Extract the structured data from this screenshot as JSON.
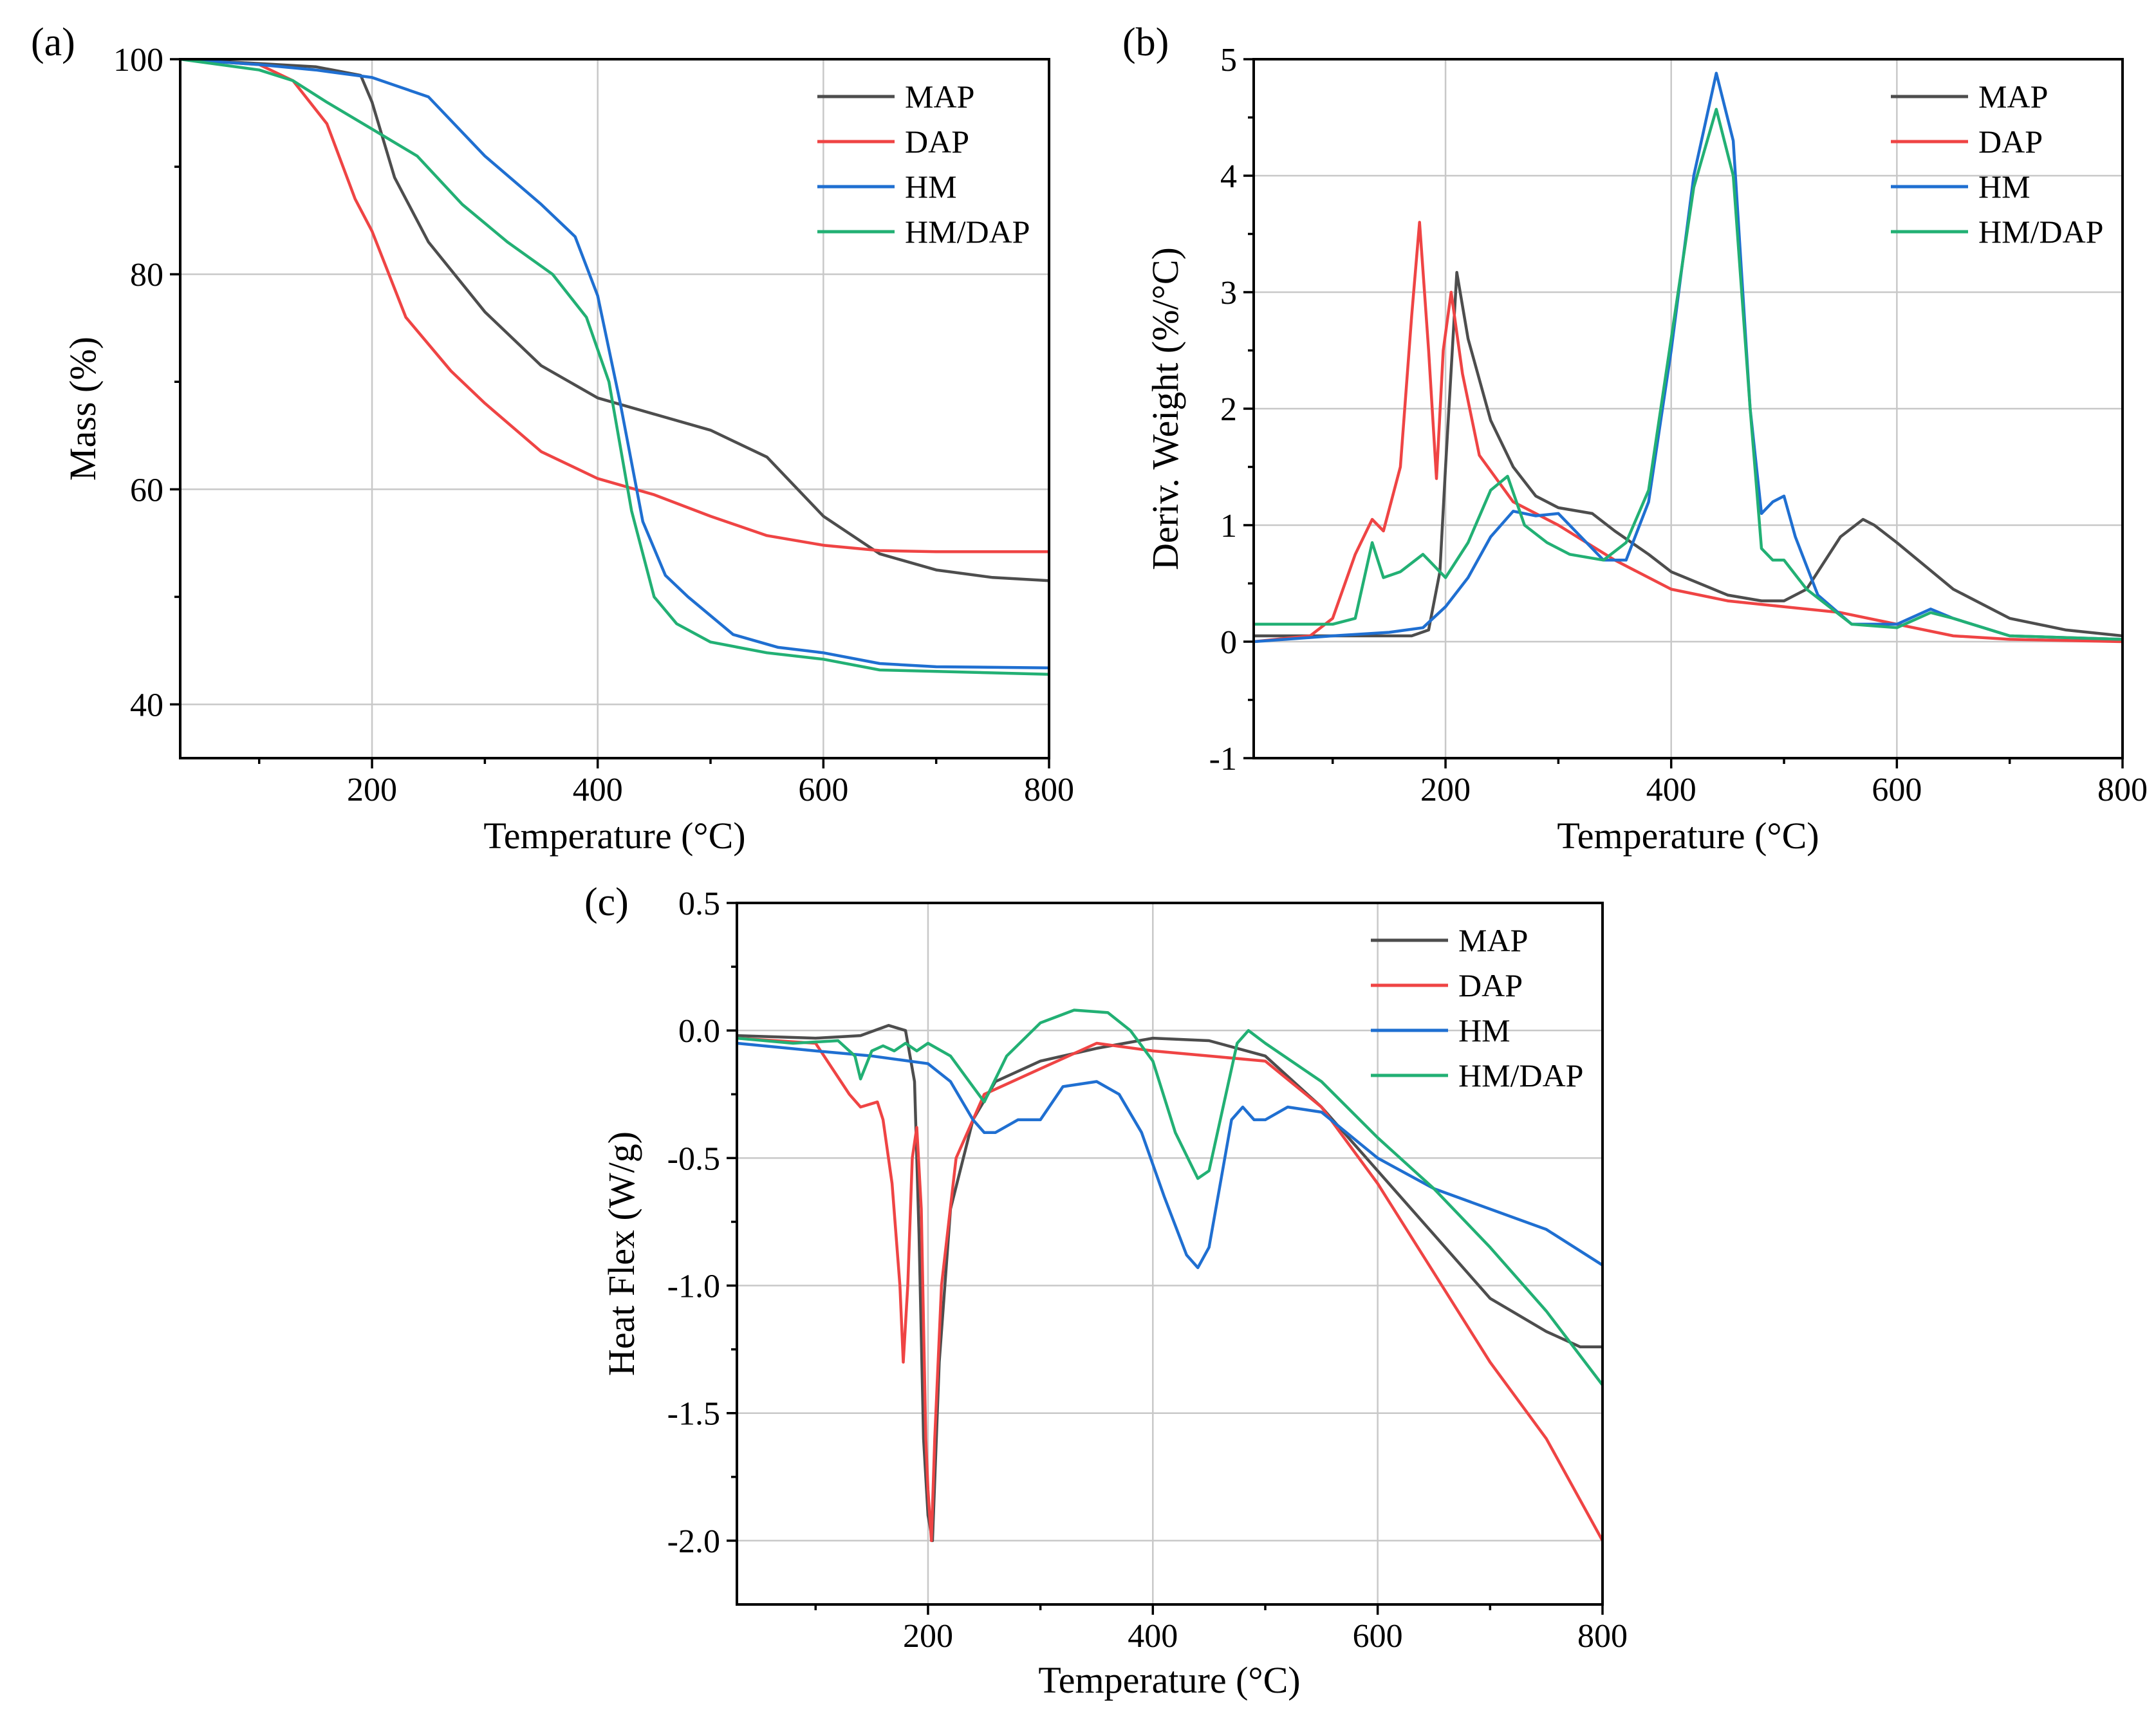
{
  "colors": {
    "MAP": "#4d4d4d",
    "DAP": "#ef4444",
    "HM": "#1f6fd1",
    "HM/DAP": "#22b074"
  },
  "chart_data": [
    {
      "id": "a",
      "type": "line",
      "panel_label": "(a)",
      "xlabel": "Temperature (°C)",
      "ylabel": "Mass (%)",
      "xlim": [
        30,
        800
      ],
      "ylim": [
        35,
        100
      ],
      "xticks": [
        200,
        400,
        600,
        800
      ],
      "yticks": [
        40,
        60,
        80,
        100
      ],
      "grid": true,
      "legend_position": "top-right",
      "series": [
        {
          "name": "MAP",
          "x": [
            30,
            100,
            150,
            190,
            200,
            220,
            250,
            300,
            350,
            400,
            450,
            500,
            550,
            600,
            650,
            700,
            750,
            800
          ],
          "y": [
            100,
            99.6,
            99.3,
            98.5,
            96,
            89,
            83,
            76.5,
            71.5,
            68.5,
            67,
            65.5,
            63,
            57.5,
            54,
            52.5,
            51.8,
            51.5
          ]
        },
        {
          "name": "DAP",
          "x": [
            30,
            100,
            130,
            160,
            185,
            200,
            230,
            270,
            300,
            350,
            400,
            450,
            500,
            550,
            600,
            650,
            700,
            800
          ],
          "y": [
            100,
            99.5,
            98,
            94,
            87,
            84,
            76,
            71,
            68,
            63.5,
            61,
            59.5,
            57.5,
            55.7,
            54.8,
            54.3,
            54.2,
            54.2
          ]
        },
        {
          "name": "HM",
          "x": [
            30,
            100,
            150,
            200,
            250,
            300,
            350,
            380,
            400,
            420,
            440,
            460,
            480,
            520,
            560,
            600,
            650,
            700,
            800
          ],
          "y": [
            100,
            99.5,
            99,
            98.3,
            96.5,
            91,
            86.5,
            83.5,
            78,
            68,
            57,
            52,
            50,
            46.5,
            45.3,
            44.8,
            43.8,
            43.5,
            43.4
          ]
        },
        {
          "name": "HM/DAP",
          "x": [
            30,
            100,
            130,
            160,
            200,
            240,
            280,
            320,
            360,
            390,
            410,
            430,
            450,
            470,
            500,
            550,
            600,
            650,
            800
          ],
          "y": [
            100,
            99,
            98,
            96,
            93.5,
            91,
            86.5,
            83,
            80,
            76,
            70,
            58,
            50,
            47.5,
            45.8,
            44.8,
            44.2,
            43.2,
            42.8
          ]
        }
      ]
    },
    {
      "id": "b",
      "type": "line",
      "panel_label": "(b)",
      "xlabel": "Temperature (°C)",
      "ylabel": "Deriv. Weight (%/°C)",
      "xlim": [
        30,
        800
      ],
      "ylim": [
        -1,
        5
      ],
      "xticks": [
        200,
        400,
        600,
        800
      ],
      "yticks": [
        -1,
        0,
        1,
        2,
        3,
        4,
        5
      ],
      "grid": true,
      "legend_position": "top-right",
      "series": [
        {
          "name": "MAP",
          "x": [
            30,
            100,
            150,
            170,
            185,
            195,
            200,
            210,
            220,
            240,
            260,
            280,
            300,
            330,
            350,
            380,
            400,
            450,
            480,
            500,
            520,
            550,
            570,
            580,
            600,
            650,
            700,
            750,
            800
          ],
          "y": [
            0.05,
            0.05,
            0.05,
            0.05,
            0.1,
            0.6,
            1.5,
            3.17,
            2.6,
            1.9,
            1.5,
            1.25,
            1.15,
            1.1,
            0.95,
            0.75,
            0.6,
            0.4,
            0.35,
            0.35,
            0.45,
            0.9,
            1.05,
            1.0,
            0.85,
            0.45,
            0.2,
            0.1,
            0.05
          ]
        },
        {
          "name": "DAP",
          "x": [
            30,
            80,
            100,
            120,
            135,
            145,
            160,
            170,
            177,
            185,
            192,
            198,
            205,
            215,
            230,
            260,
            300,
            350,
            400,
            450,
            500,
            550,
            600,
            650,
            700,
            800
          ],
          "y": [
            0.0,
            0.05,
            0.2,
            0.75,
            1.05,
            0.95,
            1.5,
            2.8,
            3.6,
            2.5,
            1.4,
            2.5,
            3.0,
            2.3,
            1.6,
            1.2,
            1.0,
            0.7,
            0.45,
            0.35,
            0.3,
            0.25,
            0.15,
            0.05,
            0.02,
            0.0
          ]
        },
        {
          "name": "HM",
          "x": [
            30,
            100,
            150,
            180,
            200,
            220,
            240,
            260,
            280,
            300,
            320,
            340,
            360,
            380,
            400,
            420,
            440,
            455,
            470,
            480,
            490,
            500,
            510,
            530,
            560,
            600,
            630,
            650,
            700,
            800
          ],
          "y": [
            0.0,
            0.05,
            0.08,
            0.12,
            0.3,
            0.55,
            0.9,
            1.12,
            1.08,
            1.1,
            0.9,
            0.7,
            0.7,
            1.2,
            2.5,
            4.0,
            4.88,
            4.3,
            2.0,
            1.1,
            1.2,
            1.25,
            0.9,
            0.4,
            0.15,
            0.15,
            0.28,
            0.2,
            0.05,
            0.02
          ]
        },
        {
          "name": "HM/DAP",
          "x": [
            30,
            100,
            120,
            135,
            145,
            160,
            180,
            185,
            200,
            220,
            240,
            255,
            270,
            290,
            310,
            340,
            360,
            380,
            400,
            420,
            440,
            455,
            470,
            480,
            490,
            500,
            520,
            560,
            600,
            630,
            650,
            700,
            800
          ],
          "y": [
            0.15,
            0.15,
            0.2,
            0.85,
            0.55,
            0.6,
            0.75,
            0.7,
            0.55,
            0.85,
            1.3,
            1.42,
            1.0,
            0.85,
            0.75,
            0.7,
            0.85,
            1.3,
            2.6,
            3.9,
            4.57,
            4.0,
            2.0,
            0.8,
            0.7,
            0.7,
            0.45,
            0.15,
            0.12,
            0.25,
            0.2,
            0.05,
            0.02
          ]
        }
      ]
    },
    {
      "id": "c",
      "type": "line",
      "panel_label": "(c)",
      "xlabel": "Temperature (°C)",
      "ylabel": "Heat Flex (W/g)",
      "xlim": [
        30,
        800
      ],
      "ylim": [
        -2.25,
        0.5
      ],
      "xticks": [
        200,
        400,
        600,
        800
      ],
      "yticks": [
        -2.0,
        -1.5,
        -1.0,
        -0.5,
        0.0,
        0.5
      ],
      "ytick_labels": [
        "-2.0",
        "-1.5",
        "-1.0",
        "-0.5",
        "0.0",
        "0.5"
      ],
      "grid": true,
      "legend_position": "top-right",
      "series": [
        {
          "name": "MAP",
          "x": [
            30,
            100,
            140,
            165,
            180,
            188,
            192,
            196,
            200,
            204,
            210,
            220,
            240,
            260,
            300,
            350,
            400,
            450,
            500,
            550,
            600,
            650,
            700,
            750,
            780,
            800
          ],
          "y": [
            -0.02,
            -0.03,
            -0.02,
            0.02,
            0.0,
            -0.2,
            -0.8,
            -1.6,
            -1.9,
            -2.0,
            -1.3,
            -0.7,
            -0.35,
            -0.2,
            -0.12,
            -0.07,
            -0.03,
            -0.04,
            -0.1,
            -0.3,
            -0.55,
            -0.8,
            -1.05,
            -1.18,
            -1.24,
            -1.24
          ]
        },
        {
          "name": "DAP",
          "x": [
            30,
            100,
            130,
            140,
            155,
            160,
            168,
            175,
            178,
            182,
            186,
            190,
            194,
            198,
            200,
            203,
            206,
            212,
            225,
            250,
            300,
            350,
            400,
            450,
            500,
            550,
            600,
            650,
            700,
            750,
            800
          ],
          "y": [
            -0.03,
            -0.05,
            -0.25,
            -0.3,
            -0.28,
            -0.35,
            -0.6,
            -1.0,
            -1.3,
            -1.0,
            -0.5,
            -0.38,
            -0.7,
            -1.6,
            -1.8,
            -2.0,
            -1.6,
            -1.0,
            -0.5,
            -0.25,
            -0.15,
            -0.05,
            -0.08,
            -0.1,
            -0.12,
            -0.3,
            -0.6,
            -0.95,
            -1.3,
            -1.6,
            -2.0
          ]
        },
        {
          "name": "HM",
          "x": [
            30,
            100,
            150,
            200,
            220,
            240,
            250,
            260,
            280,
            300,
            320,
            350,
            370,
            390,
            410,
            430,
            440,
            450,
            460,
            470,
            480,
            490,
            500,
            520,
            550,
            600,
            650,
            700,
            750,
            800
          ],
          "y": [
            -0.05,
            -0.08,
            -0.1,
            -0.13,
            -0.2,
            -0.35,
            -0.4,
            -0.4,
            -0.35,
            -0.35,
            -0.22,
            -0.2,
            -0.25,
            -0.4,
            -0.65,
            -0.88,
            -0.93,
            -0.85,
            -0.6,
            -0.35,
            -0.3,
            -0.35,
            -0.35,
            -0.3,
            -0.32,
            -0.5,
            -0.62,
            -0.7,
            -0.78,
            -0.92
          ]
        },
        {
          "name": "HM/DAP",
          "x": [
            30,
            80,
            120,
            135,
            140,
            150,
            160,
            170,
            180,
            190,
            200,
            220,
            240,
            250,
            270,
            300,
            330,
            360,
            380,
            400,
            420,
            440,
            450,
            460,
            475,
            485,
            500,
            550,
            600,
            650,
            700,
            750,
            800
          ],
          "y": [
            -0.03,
            -0.05,
            -0.04,
            -0.1,
            -0.19,
            -0.08,
            -0.06,
            -0.08,
            -0.05,
            -0.08,
            -0.05,
            -0.1,
            -0.22,
            -0.28,
            -0.1,
            0.03,
            0.08,
            0.07,
            0.0,
            -0.12,
            -0.4,
            -0.58,
            -0.55,
            -0.35,
            -0.05,
            0.0,
            -0.05,
            -0.2,
            -0.42,
            -0.62,
            -0.85,
            -1.1,
            -1.39
          ]
        }
      ]
    }
  ]
}
